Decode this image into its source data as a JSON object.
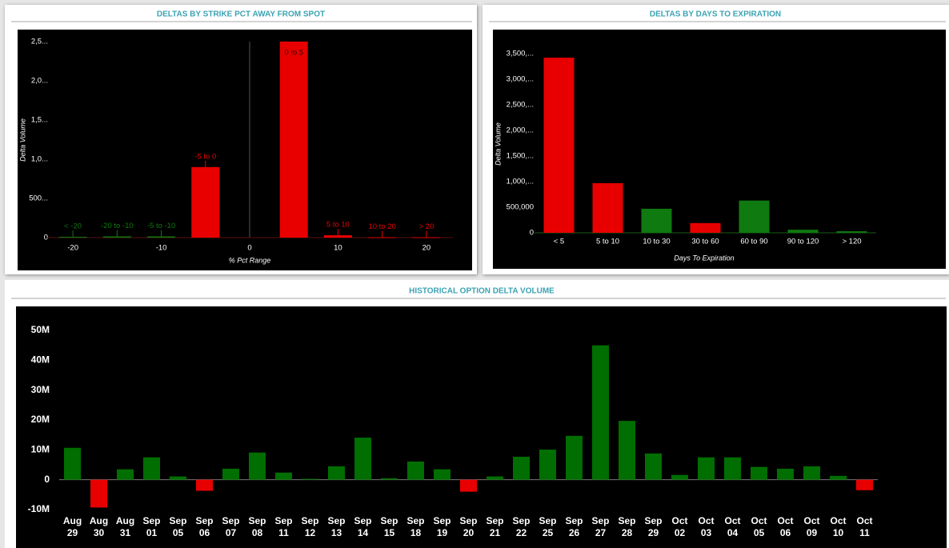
{
  "chart_data": [
    {
      "type": "bar",
      "title": "DELTAS BY STRIKE PCT AWAY FROM SPOT",
      "x_label": "% Pct Range",
      "y_label": "Delta Volume",
      "categories": [
        "< -20",
        "-20 to -10",
        "-5 to -10",
        "-5 to 0",
        "0 to 5",
        "5 to 10",
        "10 to 20",
        "> 20"
      ],
      "x": [
        -20,
        -15,
        -10,
        -5,
        5,
        10,
        15,
        20
      ],
      "values": [
        10000,
        15000,
        15000,
        900000,
        2500000,
        30000,
        5000,
        5000
      ],
      "colors": [
        "#0f7a0f",
        "#0f7a0f",
        "#0f7a0f",
        "#e80000",
        "#e80000",
        "#e80000",
        "#e80000",
        "#e80000"
      ],
      "xlim": [
        -23,
        23
      ],
      "xticks": [
        -20,
        -10,
        0,
        10,
        20
      ],
      "ylim": [
        0,
        2500000
      ],
      "yticks": [
        0,
        {
          "value": 500000,
          "label": "500..."
        },
        {
          "value": 1000000,
          "label": "1,0..."
        },
        {
          "value": 1500000,
          "label": "1,5..."
        },
        {
          "value": 2000000,
          "label": "2,0..."
        },
        {
          "value": 2500000,
          "label": "2,5..."
        }
      ],
      "grid": false
    },
    {
      "type": "bar",
      "title": "DELTAS BY DAYS TO EXPIRATION",
      "x_label": "Days To Expiration",
      "y_label": "Delta Volume",
      "categories": [
        "< 5",
        "5 to 10",
        "10 to 30",
        "30 to 60",
        "60 to 90",
        "90 to 120",
        "> 120"
      ],
      "values": [
        3420000,
        970000,
        470000,
        190000,
        630000,
        60000,
        30000
      ],
      "colors": [
        "#e80000",
        "#e80000",
        "#0f7a0f",
        "#e80000",
        "#0f7a0f",
        "#0f7a0f",
        "#0f7a0f"
      ],
      "ylim": [
        0,
        3500000
      ],
      "yticks": [
        0,
        {
          "value": 500000,
          "label": "500,000"
        },
        {
          "value": 1000000,
          "label": "1,000,..."
        },
        {
          "value": 1500000,
          "label": "1,500,..."
        },
        {
          "value": 2000000,
          "label": "2,000,..."
        },
        {
          "value": 2500000,
          "label": "2,500,..."
        },
        {
          "value": 3000000,
          "label": "3,000,..."
        },
        {
          "value": 3500000,
          "label": "3,500,..."
        }
      ],
      "grid": false
    },
    {
      "type": "bar",
      "title": "HISTORICAL OPTION DELTA VOLUME",
      "categories": [
        "Aug 29",
        "Aug 30",
        "Aug 31",
        "Sep 01",
        "Sep 05",
        "Sep 06",
        "Sep 07",
        "Sep 08",
        "Sep 11",
        "Sep 12",
        "Sep 13",
        "Sep 14",
        "Sep 15",
        "Sep 18",
        "Sep 19",
        "Sep 20",
        "Sep 21",
        "Sep 22",
        "Sep 25",
        "Sep 26",
        "Sep 27",
        "Sep 28",
        "Sep 29",
        "Oct 02",
        "Oct 03",
        "Oct 04",
        "Oct 05",
        "Oct 06",
        "Oct 09",
        "Oct 10",
        "Oct 11"
      ],
      "values": [
        10700000,
        -9300000,
        3500000,
        7500000,
        1100000,
        -3700000,
        3700000,
        9100000,
        2400000,
        300000,
        4500000,
        14100000,
        500000,
        6100000,
        3500000,
        -4000000,
        1100000,
        7700000,
        10100000,
        14700000,
        45000000,
        19700000,
        8800000,
        1600000,
        7500000,
        7500000,
        4300000,
        3700000,
        4500000,
        1300000,
        -3500000
      ],
      "colors": [
        "#006e00",
        "#e80000",
        "#006e00",
        "#006e00",
        "#006e00",
        "#e80000",
        "#006e00",
        "#006e00",
        "#006e00",
        "#006e00",
        "#006e00",
        "#006e00",
        "#006e00",
        "#006e00",
        "#006e00",
        "#e80000",
        "#006e00",
        "#006e00",
        "#006e00",
        "#006e00",
        "#006e00",
        "#006e00",
        "#006e00",
        "#006e00",
        "#006e00",
        "#006e00",
        "#006e00",
        "#006e00",
        "#006e00",
        "#006e00",
        "#e80000"
      ],
      "ylim": [
        -10000000,
        50000000
      ],
      "yticks": [
        {
          "value": -10000000,
          "label": "-10M"
        },
        0,
        {
          "value": 10000000,
          "label": "10M"
        },
        {
          "value": 20000000,
          "label": "20M"
        },
        {
          "value": 30000000,
          "label": "30M"
        },
        {
          "value": 40000000,
          "label": "40M"
        },
        {
          "value": 50000000,
          "label": "50M"
        }
      ],
      "grid": false
    }
  ]
}
